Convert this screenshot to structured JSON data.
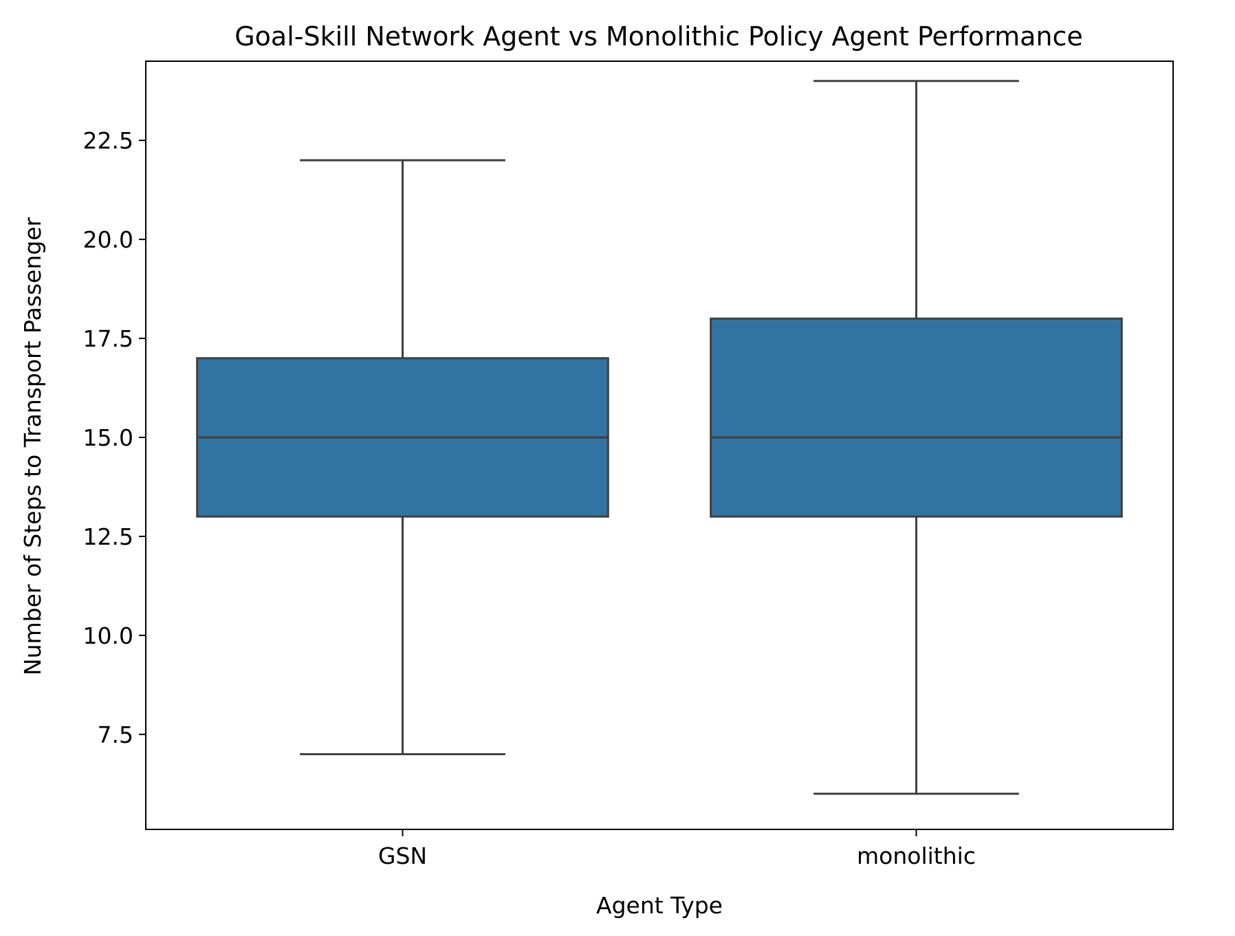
{
  "chart_data": {
    "type": "box",
    "title": "Goal-Skill Network Agent vs Monolithic Policy Agent Performance",
    "xlabel": "Agent Type",
    "ylabel": "Number of Steps to Transport Passenger",
    "categories": [
      "GSN",
      "monolithic"
    ],
    "ylim": [
      5.1,
      24.5
    ],
    "yticks": [
      7.5,
      10.0,
      12.5,
      15.0,
      17.5,
      20.0,
      22.5
    ],
    "ytick_labels": [
      "7.5",
      "10.0",
      "12.5",
      "15.0",
      "17.5",
      "20.0",
      "22.5"
    ],
    "boxes": [
      {
        "category": "GSN",
        "whisker_low": 7,
        "q1": 13,
        "median": 15,
        "q3": 17,
        "whisker_high": 22
      },
      {
        "category": "monolithic",
        "whisker_low": 6,
        "q1": 13,
        "median": 15,
        "q3": 18,
        "whisker_high": 24
      }
    ],
    "box_color": "#3274a1",
    "line_color": "#3f3f3f",
    "grid": false,
    "legend": false
  }
}
